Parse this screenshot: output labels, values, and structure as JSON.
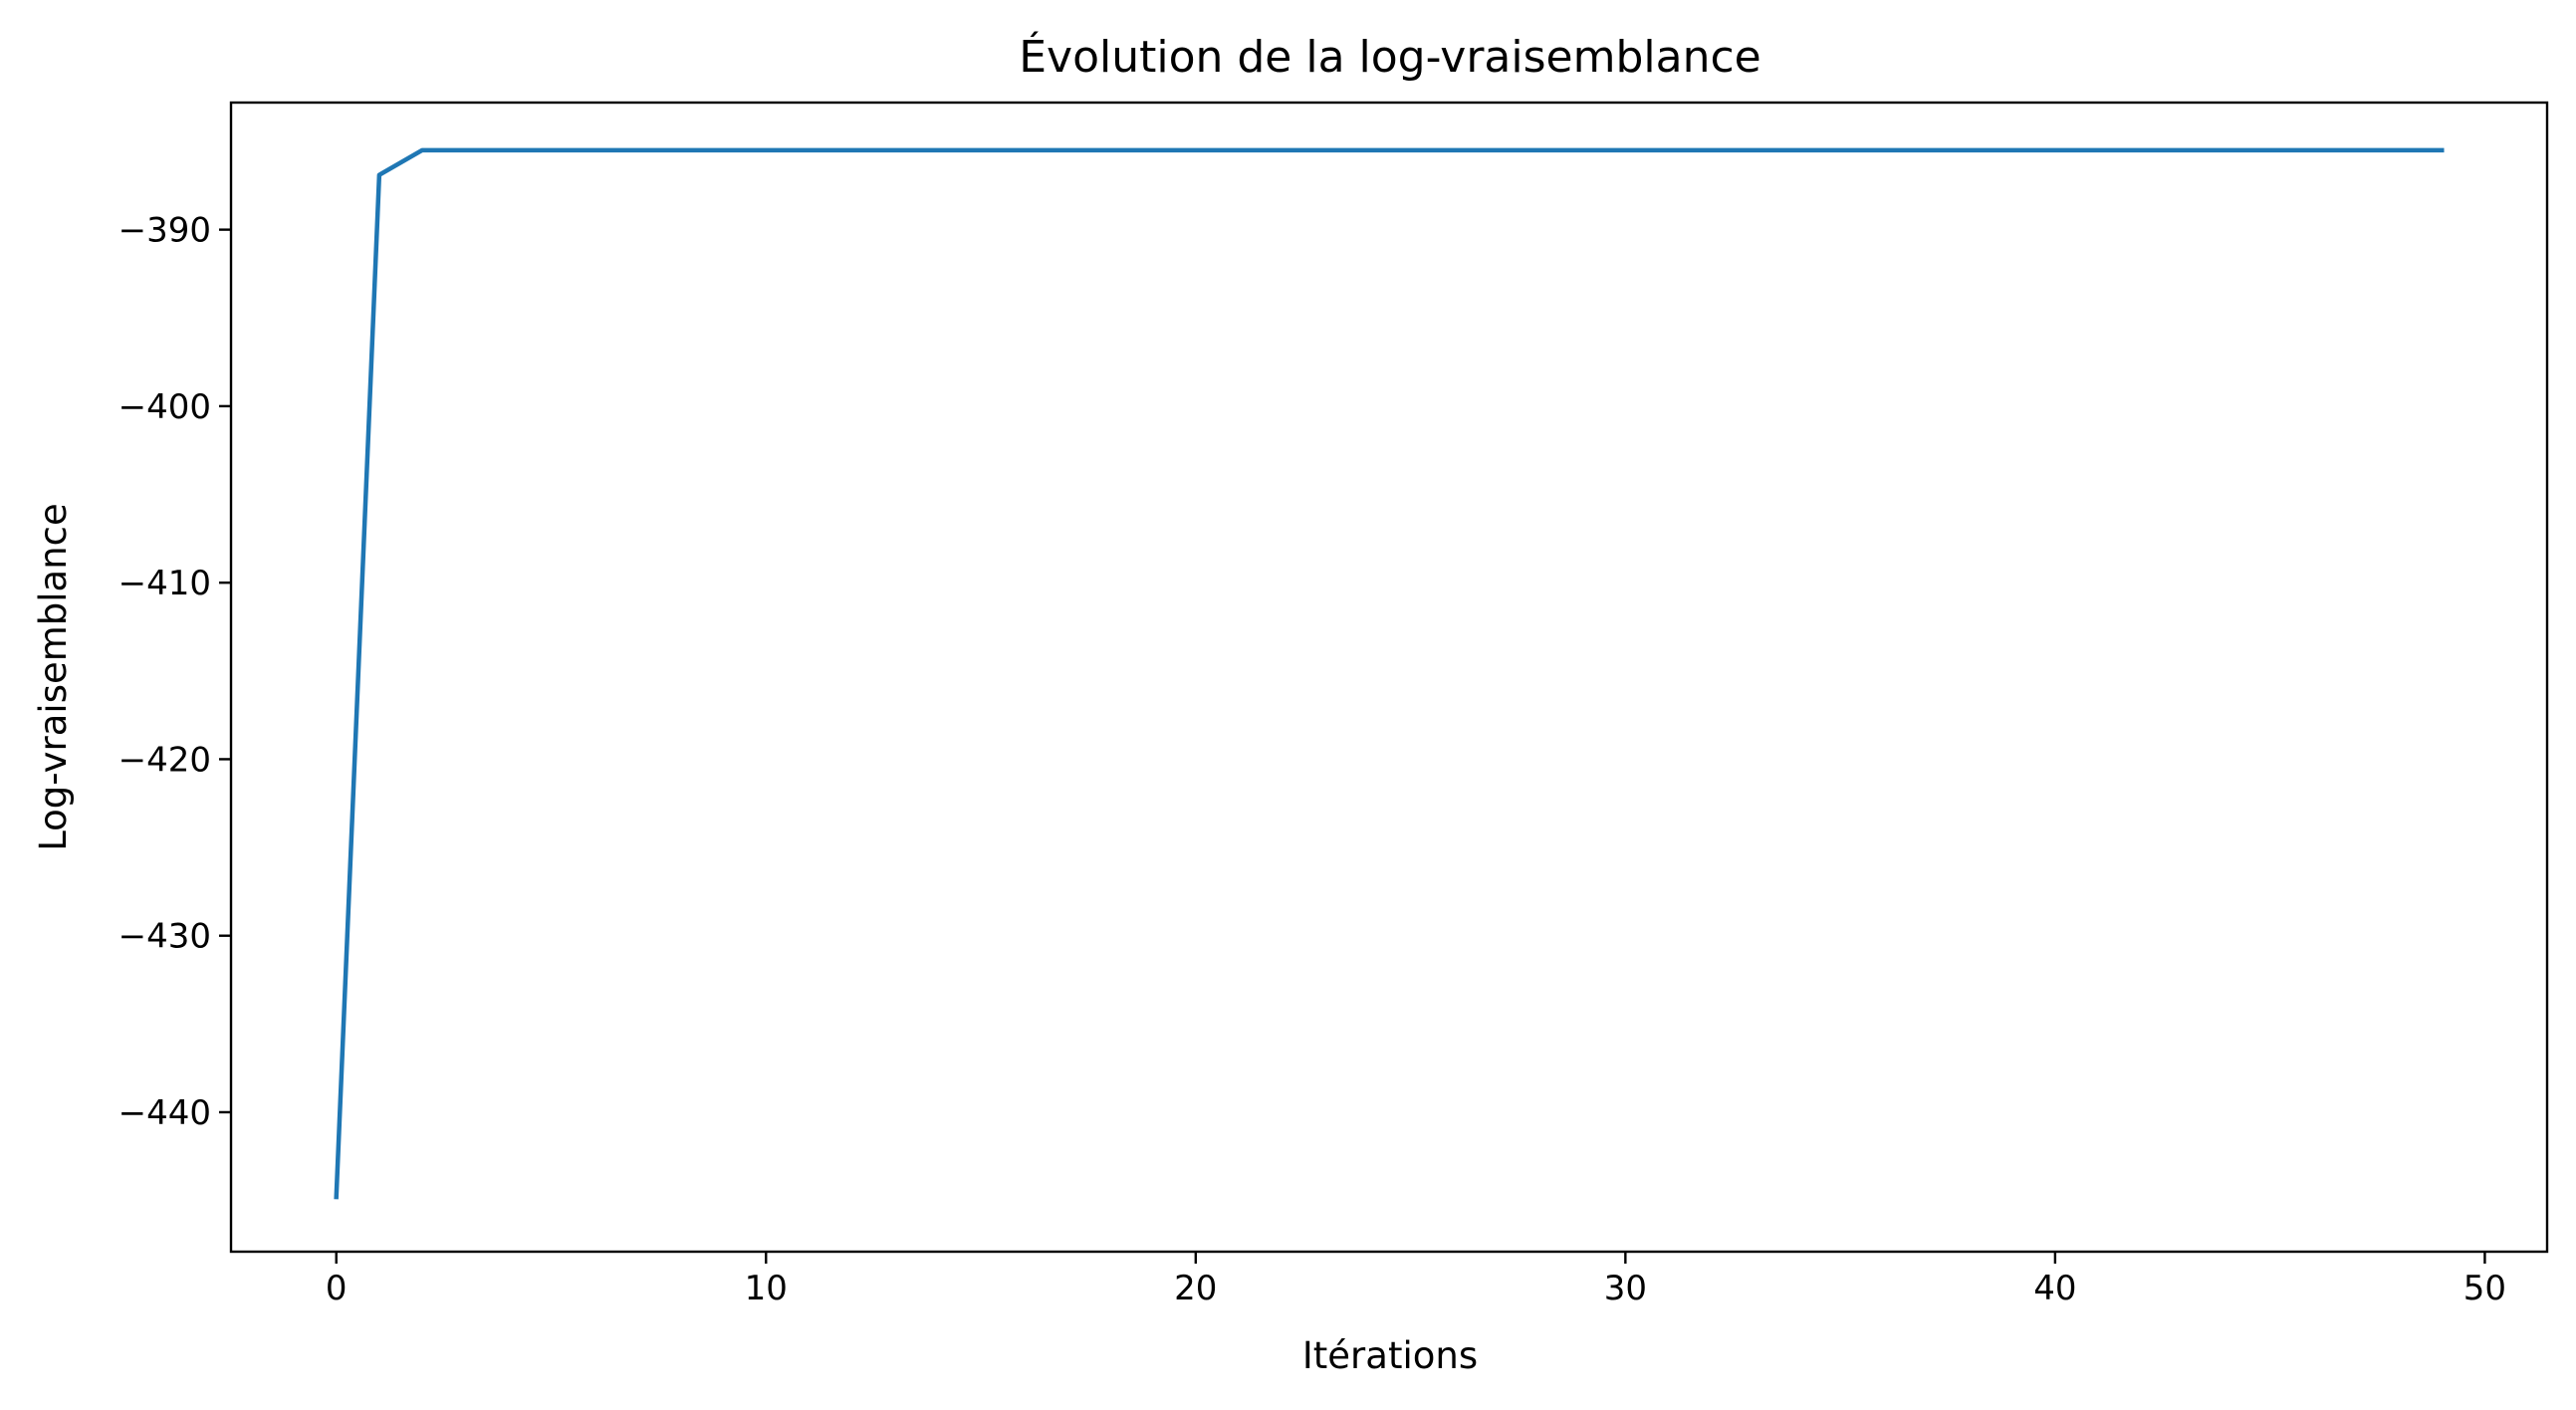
{
  "chart_data": {
    "type": "line",
    "title": "Évolution de la log-vraisemblance",
    "xlabel": "Itérations",
    "ylabel": "Log-vraisemblance",
    "xlim": [
      -2.45,
      51.45
    ],
    "ylim": [
      -447.9,
      -382.8
    ],
    "xticks": [
      0,
      10,
      20,
      30,
      40,
      50
    ],
    "xtick_labels": [
      "0",
      "10",
      "20",
      "30",
      "40",
      "50"
    ],
    "yticks": [
      -390,
      -400,
      -410,
      -420,
      -430,
      -440
    ],
    "ytick_labels": [
      "−390",
      "−400",
      "−410",
      "−420",
      "−430",
      "−440"
    ],
    "grid": false,
    "legend": "none",
    "series": [
      {
        "color": "#1f77b4",
        "x": [
          0,
          1,
          2,
          3,
          4,
          5,
          6,
          7,
          8,
          9,
          10,
          11,
          12,
          13,
          14,
          15,
          16,
          17,
          18,
          19,
          20,
          21,
          22,
          23,
          24,
          25,
          26,
          27,
          28,
          29,
          30,
          31,
          32,
          33,
          34,
          35,
          36,
          37,
          38,
          39,
          40,
          41,
          42,
          43,
          44,
          45,
          46,
          47,
          48,
          49
        ],
        "values": [
          -444.8,
          -386.9,
          -385.5,
          -385.5,
          -385.5,
          -385.5,
          -385.5,
          -385.5,
          -385.5,
          -385.5,
          -385.5,
          -385.5,
          -385.5,
          -385.5,
          -385.5,
          -385.5,
          -385.5,
          -385.5,
          -385.5,
          -385.5,
          -385.5,
          -385.5,
          -385.5,
          -385.5,
          -385.5,
          -385.5,
          -385.5,
          -385.5,
          -385.5,
          -385.5,
          -385.5,
          -385.5,
          -385.5,
          -385.5,
          -385.5,
          -385.5,
          -385.5,
          -385.5,
          -385.5,
          -385.5,
          -385.5,
          -385.5,
          -385.5,
          -385.5,
          -385.5,
          -385.5,
          -385.5,
          -385.5,
          -385.5,
          -385.5
        ]
      }
    ]
  }
}
